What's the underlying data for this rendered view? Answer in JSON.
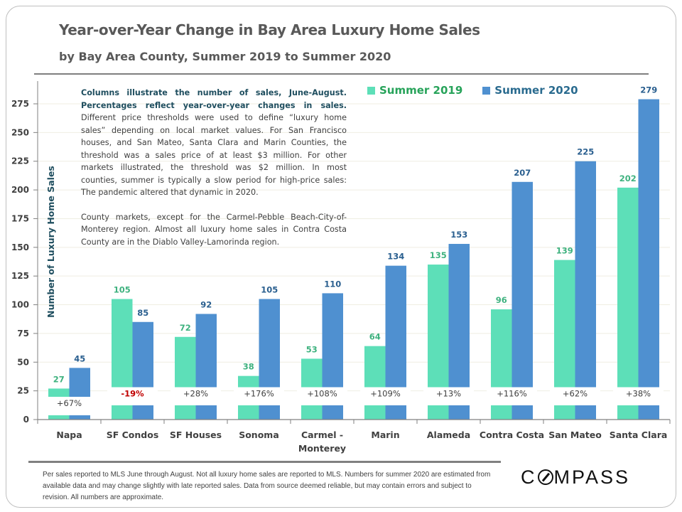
{
  "page": {
    "title": "Year-over-Year Change in Bay Area Luxury Home Sales",
    "subtitle": "by Bay Area County, Summer 2019 to Summer 2020"
  },
  "note": {
    "lead": "Columns illustrate the number of sales, June-August. Percentages reflect year-over-year changes in sales.",
    "body": "Different price thresholds were used to define “luxury home sales” depending on local market values. For San Francisco houses, and San Mateo, Santa Clara and Marin Counties, the threshold was a sales price of at least $3 million. For other markets illustrated, the threshold was $2 million. In most counties, summer is typically a slow period for high-price sales: The pandemic altered that dynamic in 2020.",
    "body2": "County markets, except for the Carmel-Pebble Beach-City-of-Monterey region. Almost all luxury home sales in Contra Costa County are in the Diablo Valley-Lamorinda region."
  },
  "footer": {
    "disclaimer": "Per sales reported to MLS June through August. Not all luxury home sales are reported to MLS. Numbers for summer 2020 are estimated from available data and may change slightly with late reported sales. Data from source deemed reliable, but may contain errors and subject to revision. All numbers are approximate.",
    "logo": "COMPASS"
  },
  "colors": {
    "summer_2019": "#5ddfb8",
    "summer_2020": "#4f90d0",
    "legend_2019_text": "#27a35a",
    "legend_2020_text": "#2a6b8f",
    "negative": "#c00000",
    "gridline": "#efeee2"
  },
  "chart_data": {
    "type": "bar",
    "title": "Year-over-Year Change in Bay Area Luxury Home Sales",
    "subtitle": "by Bay Area County, Summer 2019 to Summer 2020",
    "xlabel": "",
    "ylabel": "Number of Luxury Home Sales",
    "ylim": [
      0,
      295
    ],
    "yticks": [
      0,
      25,
      50,
      75,
      100,
      125,
      150,
      175,
      200,
      225,
      250,
      275
    ],
    "grid": true,
    "legend_position": "top-right",
    "axis_break": true,
    "categories": [
      "Napa",
      "SF Condos",
      "SF Houses",
      "Sonoma",
      "Carmel - Monterey",
      "Marin",
      "Alameda",
      "Contra Costa",
      "San Mateo",
      "Santa Clara"
    ],
    "category_lines": [
      [
        "Napa"
      ],
      [
        "SF Condos"
      ],
      [
        "SF Houses"
      ],
      [
        "Sonoma"
      ],
      [
        "Carmel -",
        "Monterey"
      ],
      [
        "Marin"
      ],
      [
        "Alameda"
      ],
      [
        "Contra Costa"
      ],
      [
        "San Mateo"
      ],
      [
        "Santa Clara"
      ]
    ],
    "series": [
      {
        "name": "Summer 2019",
        "values": [
          27,
          105,
          72,
          38,
          53,
          64,
          135,
          96,
          139,
          202
        ]
      },
      {
        "name": "Summer 2020",
        "values": [
          45,
          85,
          92,
          105,
          110,
          134,
          153,
          207,
          225,
          279
        ]
      }
    ],
    "pct_change": [
      "+67%",
      "-19%",
      "+28%",
      "+176%",
      "+108%",
      "+109%",
      "+13%",
      "+116%",
      "+62%",
      "+38%"
    ]
  }
}
